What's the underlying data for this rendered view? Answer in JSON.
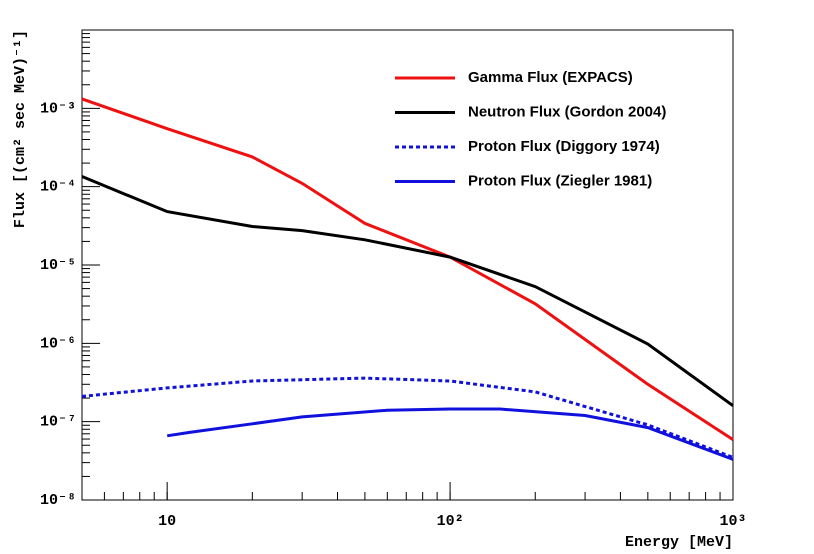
{
  "chart_data": {
    "type": "line",
    "log_x": true,
    "log_y": true,
    "xlabel": "Energy [MeV]",
    "ylabel": "Flux [(cm² sec MeV)⁻¹]",
    "xlim": [
      5,
      1000
    ],
    "xticks": [
      10,
      {
        "value": 100,
        "label": "10²"
      },
      {
        "value": 1000,
        "label": "10³"
      }
    ],
    "ylim": [
      1e-08,
      0.01
    ],
    "yticks": [
      {
        "value": 1e-08,
        "label": "10⁻⁸"
      },
      {
        "value": 1e-07,
        "label": "10⁻⁷"
      },
      {
        "value": 1e-06,
        "label": "10⁻⁶"
      },
      {
        "value": 1e-05,
        "label": "10⁻⁵"
      },
      {
        "value": 0.0001,
        "label": "10⁻⁴"
      },
      {
        "value": 0.001,
        "label": "10⁻³"
      }
    ],
    "legend": "upper right",
    "series": [
      {
        "name": "Gamma Flux (EXPACS)",
        "color": "#ee1111",
        "line_style": "solid",
        "x": [
          5,
          10,
          20,
          30,
          50,
          100,
          200,
          500,
          1000
        ],
        "values": [
          0.00132,
          0.00055,
          0.00024,
          0.00011,
          3.4e-05,
          1.26e-05,
          3.2e-06,
          3e-07,
          5.9e-08
        ]
      },
      {
        "name": "Neutron Flux (Gordon 2004)",
        "color": "#000000",
        "line_style": "solid",
        "x": [
          5,
          10,
          20,
          30,
          50,
          100,
          200,
          500,
          1000
        ],
        "values": [
          0.000135,
          4.8e-05,
          3.1e-05,
          2.75e-05,
          2.1e-05,
          1.26e-05,
          5.3e-06,
          9.8e-07,
          1.6e-07
        ]
      },
      {
        "name": "Proton Flux (Diggory 1974)",
        "color": "#1111dd",
        "line_style": "dotted",
        "x": [
          5,
          10,
          20,
          50,
          100,
          200,
          500,
          1000
        ],
        "values": [
          2.1e-07,
          2.7e-07,
          3.3e-07,
          3.6e-07,
          3.3e-07,
          2.4e-07,
          9.1e-08,
          3.5e-08
        ]
      },
      {
        "name": "Proton Flux (Ziegler 1981)",
        "color": "#1111dd",
        "line_style": "solid",
        "x": [
          10,
          12,
          20,
          30,
          60,
          100,
          150,
          300,
          500,
          1000
        ],
        "values": [
          6.6e-08,
          7.3e-08,
          9.4e-08,
          1.15e-07,
          1.4e-07,
          1.45e-07,
          1.45e-07,
          1.2e-07,
          8.4e-08,
          3.3e-08
        ]
      }
    ]
  }
}
